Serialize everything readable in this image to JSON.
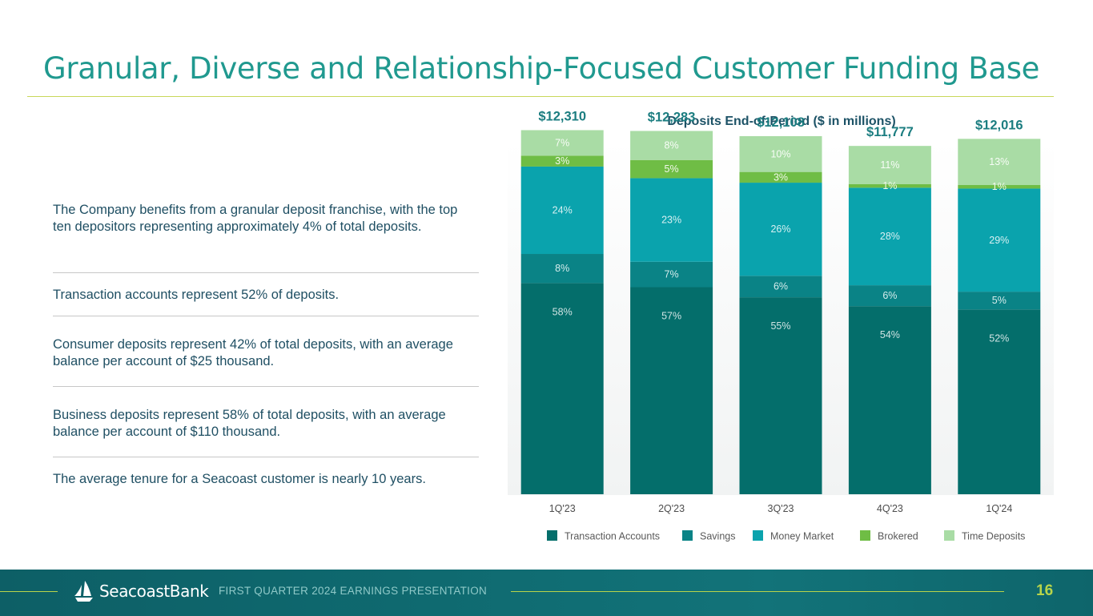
{
  "header": {
    "title": "Granular, Diverse and Relationship-Focused Customer Funding Base"
  },
  "bullets": [
    "The Company benefits from a granular deposit franchise, with the top ten depositors representing approximately 4% of total deposits.",
    "Transaction accounts represent 52% of deposits.",
    "Consumer deposits represent 42% of total deposits, with an average balance per account of $25 thousand.",
    "Business deposits represent 58% of total deposits, with an average balance per account of $110 thousand.",
    "The average tenure for a Seacoast customer is nearly 10 years."
  ],
  "chart_data": {
    "type": "bar",
    "stacked": true,
    "normalized": true,
    "title": "Deposits End-of-Period ($ in millions)",
    "categories": [
      "1Q'23",
      "2Q'23",
      "3Q'23",
      "4Q'23",
      "1Q'24"
    ],
    "totals": [
      12310,
      12283,
      12108,
      11777,
      12016
    ],
    "total_labels": [
      "$12,310",
      "$12,283",
      "$12,108",
      "$11,777",
      "$12,016"
    ],
    "series": [
      {
        "name": "Transaction Accounts",
        "color": "#046e6b",
        "label_color": "#cfe3e3",
        "values": [
          58,
          57,
          55,
          54,
          52
        ]
      },
      {
        "name": "Savings",
        "color": "#0a8386",
        "label_color": "#d5ecec",
        "values": [
          8,
          7,
          6,
          6,
          5
        ]
      },
      {
        "name": "Money Market",
        "color": "#0aa3ad",
        "label_color": "#d7f0f2",
        "values": [
          24,
          23,
          26,
          28,
          29
        ]
      },
      {
        "name": "Brokered",
        "color": "#6fbd45",
        "label_color": "#f1f8ea",
        "values": [
          3,
          5,
          3,
          1,
          1
        ]
      },
      {
        "name": "Time Deposits",
        "color": "#a9dca5",
        "label_color": "#f8fdf7",
        "values": [
          7,
          8,
          10,
          11,
          13
        ]
      }
    ],
    "ylim": [
      0,
      13000
    ],
    "legend_position": "bottom",
    "grid": false
  },
  "footer": {
    "brand": "SeacoastBank",
    "caption": "FIRST QUARTER 2024 EARNINGS PRESENTATION",
    "page_number": "16"
  }
}
